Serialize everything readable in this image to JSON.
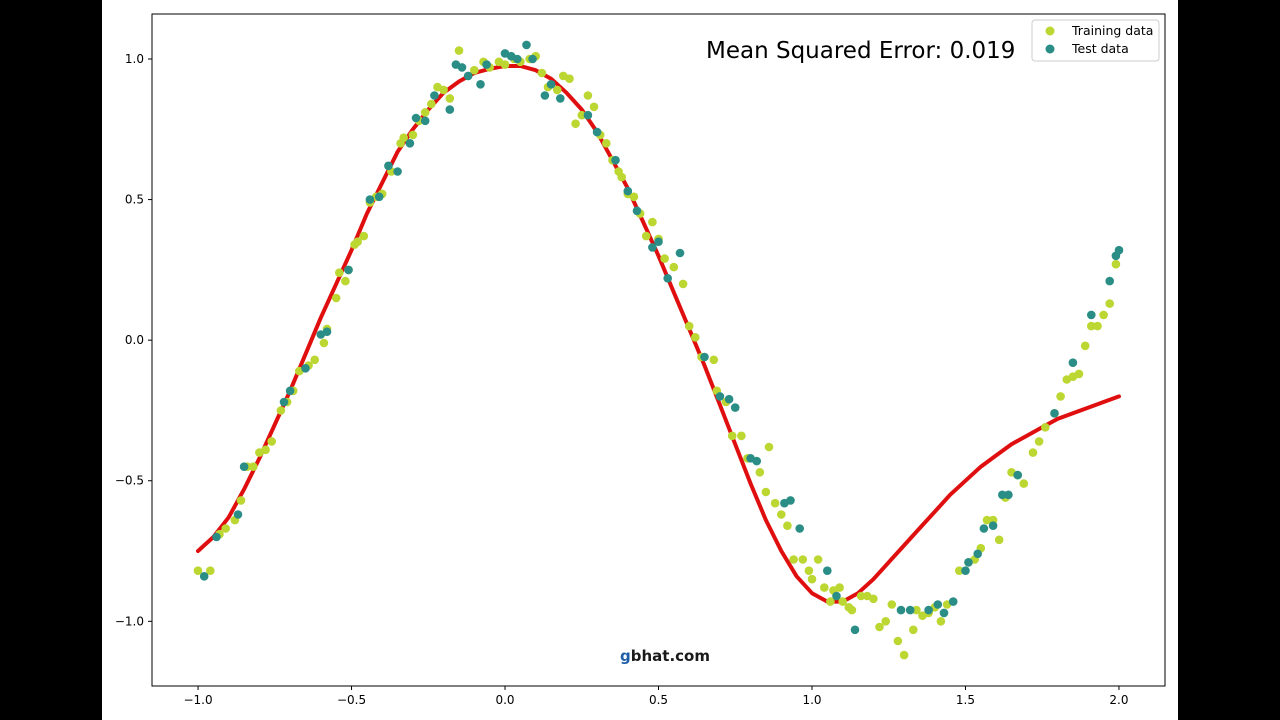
{
  "chart_data": {
    "type": "scatter",
    "title": "",
    "xlabel": "",
    "ylabel": "",
    "xlim": [
      -1.15,
      2.15
    ],
    "ylim": [
      -1.23,
      1.16
    ],
    "x_ticks": [
      -1.0,
      -0.5,
      0.0,
      0.5,
      1.0,
      1.5,
      2.0
    ],
    "x_tick_labels": [
      "−1.0",
      "−0.5",
      "0.0",
      "0.5",
      "1.0",
      "1.5",
      "2.0"
    ],
    "y_ticks": [
      1.0,
      0.5,
      0.0,
      -0.5,
      -1.0
    ],
    "y_tick_labels": [
      "1.0",
      "0.5",
      "0.0",
      "−0.5",
      "−1.0"
    ],
    "grid": false,
    "legend_position": "top-right",
    "annotation": "Mean Squared Error: 0.019",
    "watermark": {
      "g": "g",
      "rest": "bhat.com"
    },
    "series": [
      {
        "name": "Training data",
        "kind": "scatter",
        "color": "#bcd632",
        "points": [
          [
            -1.0,
            -0.82
          ],
          [
            -0.96,
            -0.82
          ],
          [
            -0.93,
            -0.69
          ],
          [
            -0.91,
            -0.67
          ],
          [
            -0.88,
            -0.64
          ],
          [
            -0.86,
            -0.57
          ],
          [
            -0.84,
            -0.45
          ],
          [
            -0.82,
            -0.45
          ],
          [
            -0.8,
            -0.4
          ],
          [
            -0.78,
            -0.39
          ],
          [
            -0.76,
            -0.36
          ],
          [
            -0.73,
            -0.25
          ],
          [
            -0.71,
            -0.22
          ],
          [
            -0.69,
            -0.18
          ],
          [
            -0.67,
            -0.11
          ],
          [
            -0.64,
            -0.09
          ],
          [
            -0.62,
            -0.07
          ],
          [
            -0.59,
            -0.01
          ],
          [
            -0.58,
            0.04
          ],
          [
            -0.55,
            0.15
          ],
          [
            -0.54,
            0.24
          ],
          [
            -0.52,
            0.21
          ],
          [
            -0.51,
            0.25
          ],
          [
            -0.49,
            0.34
          ],
          [
            -0.48,
            0.35
          ],
          [
            -0.46,
            0.37
          ],
          [
            -0.44,
            0.49
          ],
          [
            -0.42,
            0.51
          ],
          [
            -0.4,
            0.52
          ],
          [
            -0.37,
            0.6
          ],
          [
            -0.34,
            0.7
          ],
          [
            -0.33,
            0.72
          ],
          [
            -0.3,
            0.73
          ],
          [
            -0.28,
            0.78
          ],
          [
            -0.26,
            0.81
          ],
          [
            -0.24,
            0.84
          ],
          [
            -0.22,
            0.9
          ],
          [
            -0.2,
            0.89
          ],
          [
            -0.18,
            0.86
          ],
          [
            -0.15,
            1.03
          ],
          [
            -0.1,
            0.96
          ],
          [
            -0.07,
            0.99
          ],
          [
            -0.05,
            0.97
          ],
          [
            -0.02,
            0.99
          ],
          [
            0.0,
            0.98
          ],
          [
            0.03,
            1.0
          ],
          [
            0.05,
            0.99
          ],
          [
            0.08,
            1.0
          ],
          [
            0.1,
            1.01
          ],
          [
            0.12,
            0.95
          ],
          [
            0.14,
            0.9
          ],
          [
            0.17,
            0.89
          ],
          [
            0.19,
            0.94
          ],
          [
            0.21,
            0.93
          ],
          [
            0.23,
            0.77
          ],
          [
            0.25,
            0.8
          ],
          [
            0.27,
            0.87
          ],
          [
            0.29,
            0.83
          ],
          [
            0.31,
            0.73
          ],
          [
            0.33,
            0.7
          ],
          [
            0.35,
            0.64
          ],
          [
            0.37,
            0.6
          ],
          [
            0.38,
            0.58
          ],
          [
            0.4,
            0.52
          ],
          [
            0.42,
            0.51
          ],
          [
            0.44,
            0.45
          ],
          [
            0.46,
            0.37
          ],
          [
            0.48,
            0.42
          ],
          [
            0.5,
            0.36
          ],
          [
            0.52,
            0.29
          ],
          [
            0.55,
            0.26
          ],
          [
            0.58,
            0.2
          ],
          [
            0.6,
            0.05
          ],
          [
            0.62,
            0.01
          ],
          [
            0.64,
            -0.06
          ],
          [
            0.68,
            -0.07
          ],
          [
            0.69,
            -0.18
          ],
          [
            0.72,
            -0.22
          ],
          [
            0.74,
            -0.34
          ],
          [
            0.77,
            -0.34
          ],
          [
            0.79,
            -0.42
          ],
          [
            0.83,
            -0.47
          ],
          [
            0.85,
            -0.54
          ],
          [
            0.86,
            -0.38
          ],
          [
            0.88,
            -0.58
          ],
          [
            0.9,
            -0.62
          ],
          [
            0.92,
            -0.66
          ],
          [
            0.94,
            -0.78
          ],
          [
            0.97,
            -0.78
          ],
          [
            0.99,
            -0.82
          ],
          [
            1.0,
            -0.85
          ],
          [
            1.02,
            -0.78
          ],
          [
            1.04,
            -0.88
          ],
          [
            1.06,
            -0.93
          ],
          [
            1.07,
            -0.89
          ],
          [
            1.09,
            -0.88
          ],
          [
            1.1,
            -0.93
          ],
          [
            1.12,
            -0.95
          ],
          [
            1.13,
            -0.96
          ],
          [
            1.16,
            -0.91
          ],
          [
            1.18,
            -0.91
          ],
          [
            1.2,
            -0.92
          ],
          [
            1.22,
            -1.02
          ],
          [
            1.24,
            -1.0
          ],
          [
            1.26,
            -0.94
          ],
          [
            1.28,
            -1.07
          ],
          [
            1.3,
            -1.12
          ],
          [
            1.33,
            -1.03
          ],
          [
            1.34,
            -0.96
          ],
          [
            1.36,
            -0.98
          ],
          [
            1.38,
            -0.97
          ],
          [
            1.4,
            -0.95
          ],
          [
            1.42,
            -1.0
          ],
          [
            1.44,
            -0.94
          ],
          [
            1.48,
            -0.82
          ],
          [
            1.51,
            -0.79
          ],
          [
            1.53,
            -0.78
          ],
          [
            1.55,
            -0.74
          ],
          [
            1.57,
            -0.64
          ],
          [
            1.59,
            -0.64
          ],
          [
            1.61,
            -0.71
          ],
          [
            1.63,
            -0.56
          ],
          [
            1.65,
            -0.47
          ],
          [
            1.67,
            -0.48
          ],
          [
            1.69,
            -0.51
          ],
          [
            1.72,
            -0.4
          ],
          [
            1.74,
            -0.36
          ],
          [
            1.76,
            -0.31
          ],
          [
            1.79,
            -0.26
          ],
          [
            1.81,
            -0.2
          ],
          [
            1.83,
            -0.14
          ],
          [
            1.85,
            -0.13
          ],
          [
            1.87,
            -0.12
          ],
          [
            1.89,
            -0.02
          ],
          [
            1.91,
            0.05
          ],
          [
            1.93,
            0.05
          ],
          [
            1.95,
            0.09
          ],
          [
            1.97,
            0.13
          ],
          [
            1.99,
            0.27
          ]
        ]
      },
      {
        "name": "Test data",
        "kind": "scatter",
        "color": "#2a8d86",
        "points": [
          [
            -0.98,
            -0.84
          ],
          [
            -0.94,
            -0.7
          ],
          [
            -0.87,
            -0.62
          ],
          [
            -0.85,
            -0.45
          ],
          [
            -0.72,
            -0.22
          ],
          [
            -0.7,
            -0.18
          ],
          [
            -0.65,
            -0.1
          ],
          [
            -0.6,
            0.02
          ],
          [
            -0.58,
            0.03
          ],
          [
            -0.51,
            0.25
          ],
          [
            -0.44,
            0.5
          ],
          [
            -0.41,
            0.51
          ],
          [
            -0.38,
            0.62
          ],
          [
            -0.35,
            0.6
          ],
          [
            -0.31,
            0.7
          ],
          [
            -0.29,
            0.79
          ],
          [
            -0.26,
            0.78
          ],
          [
            -0.23,
            0.87
          ],
          [
            -0.18,
            0.82
          ],
          [
            -0.16,
            0.98
          ],
          [
            -0.14,
            0.97
          ],
          [
            -0.12,
            0.94
          ],
          [
            -0.08,
            0.91
          ],
          [
            -0.06,
            0.98
          ],
          [
            0.0,
            1.02
          ],
          [
            0.02,
            1.01
          ],
          [
            0.04,
            1.0
          ],
          [
            0.07,
            1.05
          ],
          [
            0.09,
            1.0
          ],
          [
            0.13,
            0.87
          ],
          [
            0.15,
            0.91
          ],
          [
            0.18,
            0.86
          ],
          [
            0.27,
            0.8
          ],
          [
            0.3,
            0.74
          ],
          [
            0.36,
            0.64
          ],
          [
            0.4,
            0.53
          ],
          [
            0.43,
            0.46
          ],
          [
            0.48,
            0.33
          ],
          [
            0.5,
            0.35
          ],
          [
            0.53,
            0.22
          ],
          [
            0.57,
            0.31
          ],
          [
            0.65,
            -0.06
          ],
          [
            0.7,
            -0.2
          ],
          [
            0.73,
            -0.21
          ],
          [
            0.75,
            -0.24
          ],
          [
            0.8,
            -0.42
          ],
          [
            0.82,
            -0.43
          ],
          [
            0.91,
            -0.58
          ],
          [
            0.93,
            -0.57
          ],
          [
            0.96,
            -0.67
          ],
          [
            1.05,
            -0.82
          ],
          [
            1.08,
            -0.91
          ],
          [
            1.14,
            -1.03
          ],
          [
            1.29,
            -0.96
          ],
          [
            1.32,
            -0.96
          ],
          [
            1.38,
            -0.96
          ],
          [
            1.41,
            -0.94
          ],
          [
            1.43,
            -0.97
          ],
          [
            1.46,
            -0.93
          ],
          [
            1.5,
            -0.82
          ],
          [
            1.51,
            -0.79
          ],
          [
            1.54,
            -0.76
          ],
          [
            1.56,
            -0.67
          ],
          [
            1.59,
            -0.66
          ],
          [
            1.62,
            -0.55
          ],
          [
            1.64,
            -0.55
          ],
          [
            1.67,
            -0.48
          ],
          [
            1.79,
            -0.26
          ],
          [
            1.85,
            -0.08
          ],
          [
            1.91,
            0.09
          ],
          [
            1.97,
            0.21
          ],
          [
            1.99,
            0.3
          ],
          [
            2.0,
            0.32
          ]
        ]
      },
      {
        "name": "",
        "kind": "line",
        "color": "#e00f0f",
        "points": [
          [
            -1.0,
            -0.75
          ],
          [
            -0.95,
            -0.7
          ],
          [
            -0.9,
            -0.63
          ],
          [
            -0.85,
            -0.53
          ],
          [
            -0.8,
            -0.42
          ],
          [
            -0.75,
            -0.3
          ],
          [
            -0.7,
            -0.18
          ],
          [
            -0.65,
            -0.05
          ],
          [
            -0.6,
            0.08
          ],
          [
            -0.55,
            0.2
          ],
          [
            -0.5,
            0.32
          ],
          [
            -0.45,
            0.45
          ],
          [
            -0.4,
            0.56
          ],
          [
            -0.35,
            0.67
          ],
          [
            -0.3,
            0.75
          ],
          [
            -0.25,
            0.82
          ],
          [
            -0.2,
            0.88
          ],
          [
            -0.15,
            0.92
          ],
          [
            -0.1,
            0.95
          ],
          [
            -0.05,
            0.965
          ],
          [
            0.0,
            0.975
          ],
          [
            0.05,
            0.975
          ],
          [
            0.1,
            0.96
          ],
          [
            0.15,
            0.93
          ],
          [
            0.2,
            0.88
          ],
          [
            0.25,
            0.82
          ],
          [
            0.3,
            0.74
          ],
          [
            0.35,
            0.64
          ],
          [
            0.4,
            0.54
          ],
          [
            0.45,
            0.42
          ],
          [
            0.5,
            0.3
          ],
          [
            0.55,
            0.17
          ],
          [
            0.6,
            0.04
          ],
          [
            0.65,
            -0.09
          ],
          [
            0.7,
            -0.23
          ],
          [
            0.75,
            -0.37
          ],
          [
            0.8,
            -0.51
          ],
          [
            0.85,
            -0.64
          ],
          [
            0.9,
            -0.75
          ],
          [
            0.95,
            -0.84
          ],
          [
            1.0,
            -0.9
          ],
          [
            1.05,
            -0.93
          ],
          [
            1.1,
            -0.93
          ],
          [
            1.15,
            -0.9
          ],
          [
            1.2,
            -0.85
          ],
          [
            1.25,
            -0.79
          ],
          [
            1.3,
            -0.73
          ],
          [
            1.35,
            -0.67
          ],
          [
            1.4,
            -0.61
          ],
          [
            1.45,
            -0.55
          ],
          [
            1.5,
            -0.5
          ],
          [
            1.55,
            -0.45
          ],
          [
            1.6,
            -0.41
          ],
          [
            1.65,
            -0.37
          ],
          [
            1.7,
            -0.34
          ],
          [
            1.75,
            -0.31
          ],
          [
            1.8,
            -0.28
          ],
          [
            1.85,
            -0.26
          ],
          [
            1.9,
            -0.24
          ],
          [
            1.95,
            -0.22
          ],
          [
            2.0,
            -0.2
          ]
        ]
      }
    ]
  }
}
